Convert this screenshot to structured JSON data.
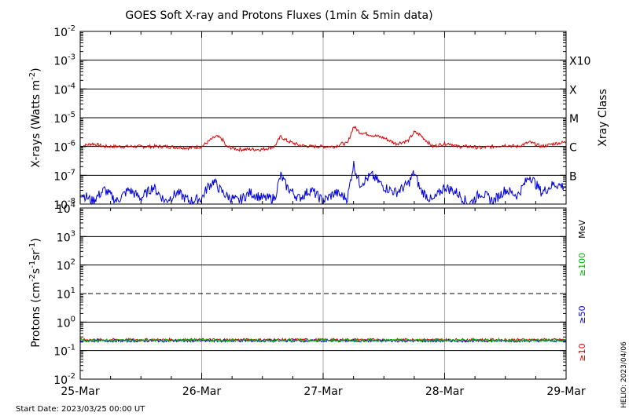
{
  "chart_data": {
    "type": "line",
    "title": "GOES Soft X-ray and Protons Fluxes   (1min & 5min data)",
    "x_ticks": [
      "25-Mar",
      "26-Mar",
      "27-Mar",
      "28-Mar",
      "29-Mar"
    ],
    "start_date_label": "Start Date: 2023/03/25 00:00 UT",
    "credit": "HELIO: 2023/04/06",
    "panels": [
      {
        "name": "xrays",
        "ylabel": "X-rays (Watts m",
        "ylabel_sup": "-2",
        "ylabel_tail": ")",
        "log": true,
        "ylim_exp": [
          -8,
          -2
        ],
        "tick_exponents": [
          -2,
          -3,
          -4,
          -5,
          -6,
          -7,
          -8
        ],
        "right_axis_title": "Xray Class",
        "class_labels": [
          {
            "label": "X10",
            "exp": -3
          },
          {
            "label": "X",
            "exp": -4
          },
          {
            "label": "M",
            "exp": -5
          },
          {
            "label": "C",
            "exp": -6
          },
          {
            "label": "B",
            "exp": -7
          }
        ],
        "series": [
          {
            "color": "#e00000",
            "x_days": [
              0,
              0.1,
              0.2,
              0.3,
              0.35,
              0.5,
              0.7,
              0.9,
              1.0,
              1.08,
              1.12,
              1.15,
              1.18,
              1.2,
              1.3,
              1.5,
              1.6,
              1.65,
              1.7,
              1.8,
              1.9,
              2.0,
              2.1,
              2.15,
              2.2,
              2.25,
              2.3,
              2.4,
              2.5,
              2.6,
              2.7,
              2.75,
              2.8,
              2.9,
              3.0,
              3.05,
              3.1,
              3.2,
              3.3,
              3.4,
              3.5,
              3.6,
              3.7,
              3.8,
              3.9,
              4.0
            ],
            "y_exp": [
              -6.0,
              -5.9,
              -6.0,
              -6.0,
              -6.0,
              -6.0,
              -6.0,
              -6.05,
              -6.0,
              -5.75,
              -5.65,
              -5.7,
              -5.8,
              -6.0,
              -6.1,
              -6.1,
              -6.0,
              -5.65,
              -5.8,
              -5.95,
              -6.0,
              -6.0,
              -6.0,
              -5.9,
              -5.9,
              -5.3,
              -5.5,
              -5.6,
              -5.7,
              -5.9,
              -5.8,
              -5.5,
              -5.6,
              -6.0,
              -5.9,
              -5.9,
              -6.0,
              -6.0,
              -6.05,
              -6.0,
              -5.95,
              -6.0,
              -5.85,
              -6.0,
              -5.9,
              -5.85
            ]
          },
          {
            "color": "#0000dd",
            "x_days": [
              0,
              0.1,
              0.2,
              0.3,
              0.4,
              0.5,
              0.6,
              0.7,
              0.8,
              0.9,
              1.0,
              1.05,
              1.1,
              1.15,
              1.2,
              1.3,
              1.4,
              1.5,
              1.6,
              1.65,
              1.7,
              1.8,
              1.9,
              2.0,
              2.1,
              2.2,
              2.25,
              2.3,
              2.4,
              2.5,
              2.6,
              2.7,
              2.75,
              2.8,
              2.9,
              3.0,
              3.1,
              3.2,
              3.3,
              3.4,
              3.5,
              3.6,
              3.7,
              3.8,
              3.9,
              4.0
            ],
            "y_exp": [
              -7.6,
              -7.9,
              -7.5,
              -7.9,
              -7.5,
              -7.8,
              -7.4,
              -7.9,
              -7.6,
              -7.9,
              -7.8,
              -7.4,
              -7.2,
              -7.5,
              -7.7,
              -7.9,
              -7.6,
              -7.8,
              -7.8,
              -7.0,
              -7.4,
              -7.8,
              -7.5,
              -7.9,
              -7.6,
              -7.8,
              -6.6,
              -7.3,
              -7.0,
              -7.4,
              -7.6,
              -7.3,
              -6.9,
              -7.5,
              -7.9,
              -7.4,
              -7.6,
              -8.0,
              -7.6,
              -7.9,
              -7.5,
              -7.7,
              -7.0,
              -7.6,
              -7.3,
              -7.4
            ]
          }
        ]
      },
      {
        "name": "protons",
        "ylabel": "Protons (cm",
        "ylabel_sup1": "-2",
        "ylabel_mid": "s",
        "ylabel_sup2": "-1",
        "ylabel_mid2": "sr",
        "ylabel_sup3": "-1",
        "ylabel_tail": ")",
        "log": true,
        "ylim_exp": [
          -2,
          4
        ],
        "tick_exponents": [
          4,
          3,
          2,
          1,
          0,
          -1,
          -2
        ],
        "dashed_threshold_exp": 1,
        "right_axis_title": "MeV",
        "energy_labels": [
          {
            "label": "≥100",
            "color": "#00bb00"
          },
          {
            "label": "≥50",
            "color": "#0000dd"
          },
          {
            "label": "≥10",
            "color": "#e00000"
          }
        ],
        "series": [
          {
            "name": "≥10",
            "color": "#e00000",
            "mean_value": 0.24
          },
          {
            "name": "≥50",
            "color": "#0000dd",
            "mean_value": 0.22
          },
          {
            "name": "≥100",
            "color": "#00bb00",
            "mean_value": 0.23
          }
        ]
      }
    ]
  }
}
